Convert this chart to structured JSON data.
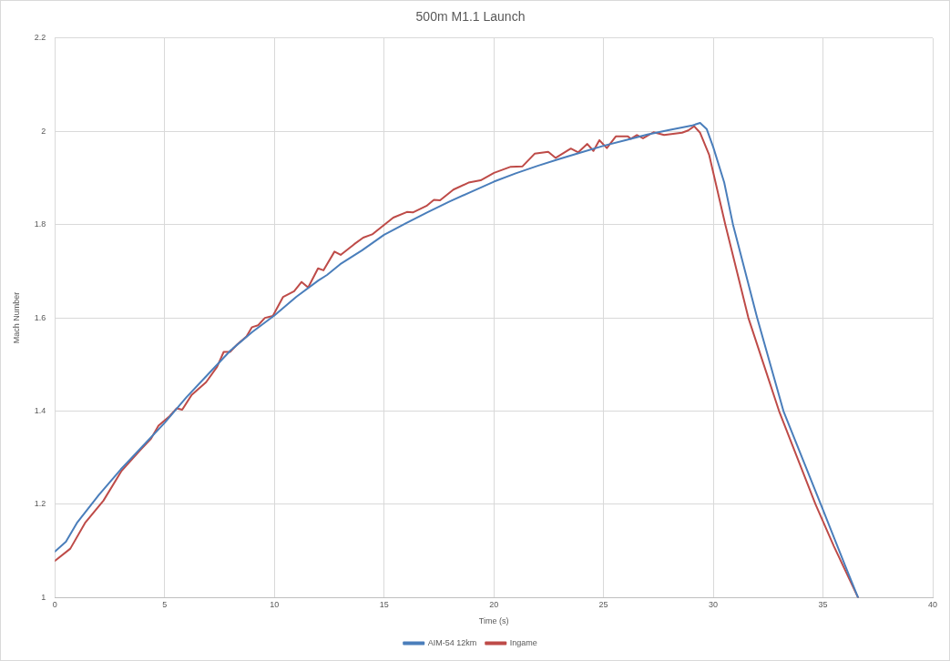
{
  "chart_data": {
    "type": "line",
    "title": "500m M1.1 Launch",
    "xlabel": "Time (s)",
    "ylabel": "Mach Number",
    "xlim": [
      0,
      40
    ],
    "xticks": [
      0,
      5,
      10,
      15,
      20,
      25,
      30,
      35,
      40
    ],
    "ylim": [
      1,
      2.2
    ],
    "yticks": [
      1,
      1.2,
      1.4,
      1.6,
      1.8,
      2,
      2.2
    ],
    "grid": true,
    "legend": "bottom",
    "marker": "none",
    "line_style": "solid",
    "series": [
      {
        "name": "AIM-54 12km",
        "color": "#4a7ebb",
        "x": [
          0,
          0.5,
          1,
          2,
          3,
          4,
          5,
          6,
          7,
          8,
          9,
          10,
          11,
          12,
          12.4,
          13,
          14,
          15,
          16,
          17,
          18,
          19,
          20,
          21,
          22,
          23,
          24,
          25,
          26,
          27,
          28,
          29,
          29.4,
          29.7,
          30,
          30.5,
          30.9,
          32,
          33.2,
          34.9,
          36,
          36.6
        ],
        "values": [
          1.099,
          1.12,
          1.16,
          1.22,
          1.275,
          1.325,
          1.375,
          1.43,
          1.48,
          1.53,
          1.57,
          1.605,
          1.645,
          1.68,
          1.692,
          1.715,
          1.745,
          1.778,
          1.803,
          1.827,
          1.85,
          1.871,
          1.892,
          1.91,
          1.926,
          1.941,
          1.955,
          1.969,
          1.981,
          1.993,
          2.003,
          2.012,
          2.018,
          2.005,
          1.966,
          1.89,
          1.8,
          1.6,
          1.4,
          1.2,
          1.07,
          1.0
        ]
      },
      {
        "name": "Ingame",
        "color": "#be4b48",
        "x": [
          0,
          0.7,
          1.37,
          2.21,
          3.04,
          3.88,
          4.38,
          4.72,
          5.22,
          5.55,
          5.8,
          6.22,
          6.89,
          7.39,
          7.69,
          7.98,
          8.31,
          8.73,
          8.98,
          9.26,
          9.57,
          9.93,
          10.4,
          10.9,
          11.24,
          11.54,
          11.99,
          12.24,
          12.74,
          13.02,
          13.64,
          14.05,
          14.46,
          15.42,
          16.04,
          16.31,
          16.93,
          17.27,
          17.55,
          18.16,
          18.85,
          19.4,
          20.01,
          20.77,
          21.31,
          21.86,
          22.48,
          22.82,
          23.51,
          23.85,
          24.26,
          24.54,
          24.81,
          25.15,
          25.56,
          26.11,
          26.25,
          26.52,
          26.8,
          27.28,
          27.76,
          28.58,
          28.86,
          29.13,
          29.4,
          29.81,
          30.55,
          31.6,
          32.3,
          33,
          34.66,
          35.5,
          36.6
        ],
        "values": [
          1.079,
          1.105,
          1.16,
          1.208,
          1.272,
          1.316,
          1.341,
          1.369,
          1.389,
          1.406,
          1.403,
          1.434,
          1.462,
          1.495,
          1.527,
          1.527,
          1.543,
          1.56,
          1.58,
          1.584,
          1.6,
          1.604,
          1.645,
          1.657,
          1.677,
          1.665,
          1.706,
          1.702,
          1.742,
          1.735,
          1.758,
          1.772,
          1.779,
          1.815,
          1.827,
          1.826,
          1.84,
          1.853,
          1.852,
          1.875,
          1.89,
          1.895,
          1.911,
          1.924,
          1.925,
          1.952,
          1.956,
          1.943,
          1.963,
          1.955,
          1.973,
          1.958,
          1.981,
          1.964,
          1.989,
          1.989,
          1.984,
          1.992,
          1.985,
          1.998,
          1.992,
          1.997,
          2.002,
          2.011,
          1.997,
          1.95,
          1.8,
          1.6,
          1.5,
          1.4,
          1.2,
          1.11,
          1.0
        ]
      }
    ]
  }
}
